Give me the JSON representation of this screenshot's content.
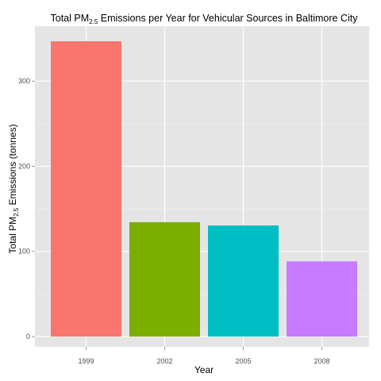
{
  "chart_data": {
    "type": "bar",
    "title": {
      "prefix": "Total PM",
      "subscript": "2.5",
      "suffix": "  Emissions per Year for Vehicular Sources in Baltimore City"
    },
    "xlabel": "Year",
    "ylabel": {
      "prefix": "Total PM",
      "subscript": "2.5",
      "suffix": " Emissions (tonnes)"
    },
    "categories": [
      "1999",
      "2002",
      "2005",
      "2008"
    ],
    "values": [
      346.8,
      134.3,
      130.4,
      88.3
    ],
    "colors": [
      "#F8766D",
      "#7CAE00",
      "#00BFC4",
      "#C77CFF"
    ],
    "ylim": [
      0,
      346.8
    ],
    "y_ticks": [
      0,
      100,
      200,
      300
    ],
    "y_tick_labels": [
      "0",
      "100",
      "200",
      "300"
    ],
    "grid": true,
    "legend": "none",
    "panel_color": "#E5E5E5",
    "grid_color": "#FFFFFF"
  }
}
